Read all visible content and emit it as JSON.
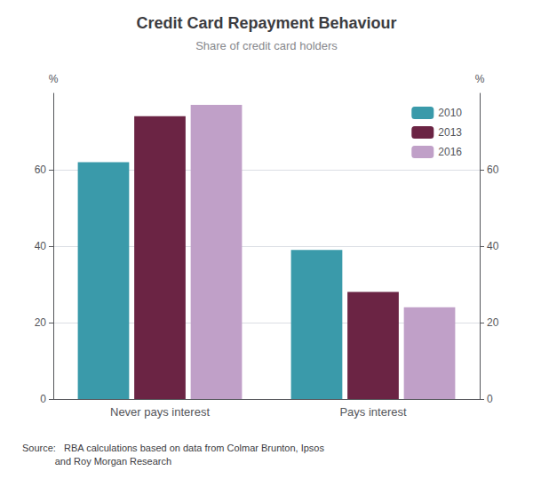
{
  "chart_data": {
    "type": "bar",
    "title": "Credit Card Repayment Behaviour",
    "subtitle": "Share of credit card holders",
    "categories": [
      "Never pays interest",
      "Pays interest"
    ],
    "series": [
      {
        "name": "2010",
        "color": "#3a9aaa",
        "values": [
          62,
          39
        ]
      },
      {
        "name": "2013",
        "color": "#6b2444",
        "values": [
          74,
          28
        ]
      },
      {
        "name": "2016",
        "color": "#c0a0c8",
        "values": [
          77,
          24
        ]
      }
    ],
    "ylabel": "%",
    "y2label": "%",
    "ylim": [
      0,
      80
    ],
    "yticks": [
      0,
      20,
      40,
      60
    ],
    "y2lim": [
      0,
      80
    ],
    "y2ticks": [
      0,
      20,
      40,
      60
    ],
    "grid": true,
    "legend": "upper right",
    "source": "Source:   RBA calculations based on data from Colmar Brunton, Ipsos\n            and Roy Morgan Research"
  }
}
